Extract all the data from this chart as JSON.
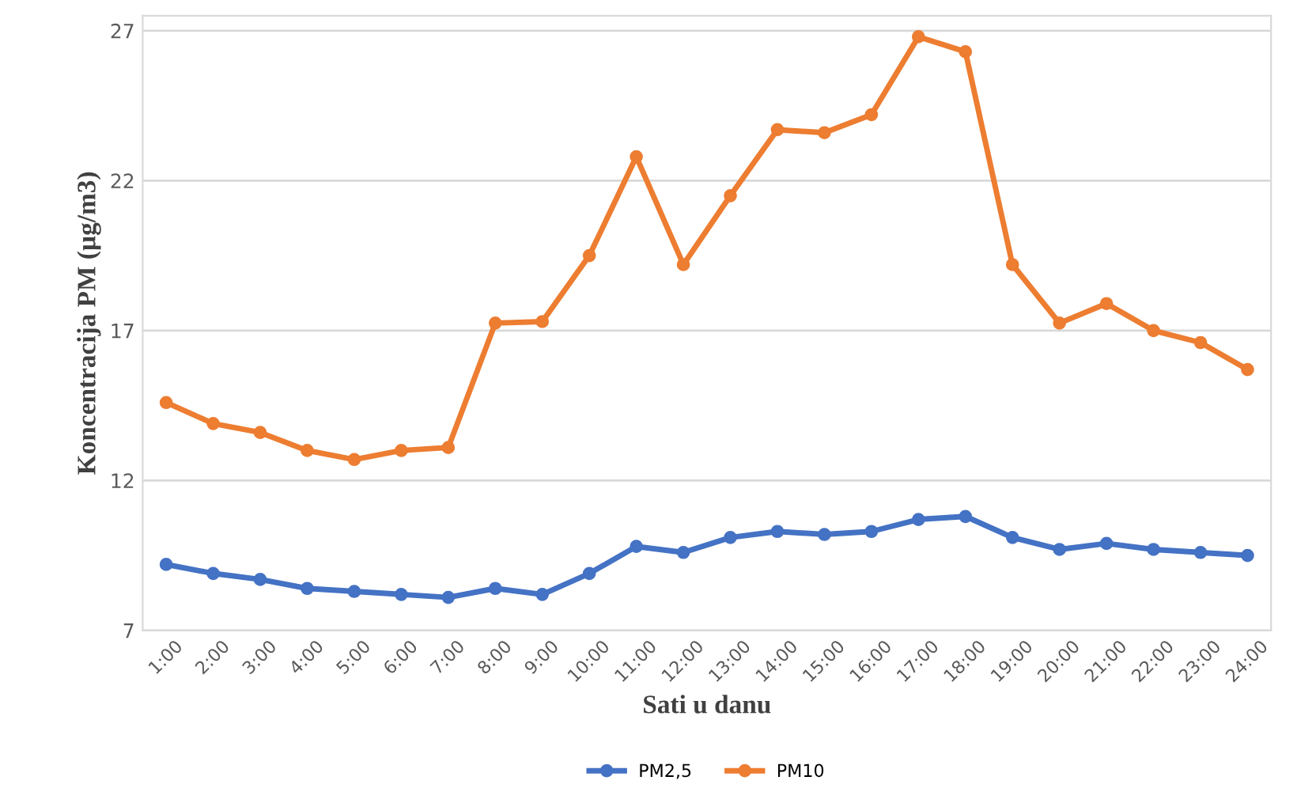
{
  "chart_data": {
    "type": "line",
    "xlabel": "Sati u danu",
    "ylabel": "Koncentracija PM (µg/m3)",
    "categories": [
      "1:00",
      "2:00",
      "3:00",
      "4:00",
      "5:00",
      "6:00",
      "7:00",
      "8:00",
      "9:00",
      "10:00",
      "11:00",
      "12:00",
      "13:00",
      "14:00",
      "15:00",
      "16:00",
      "17:00",
      "18:00",
      "19:00",
      "20:00",
      "21:00",
      "22:00",
      "23:00",
      "24:00"
    ],
    "series": [
      {
        "name": "PM2,5",
        "color": "#4472c4",
        "values": [
          9.2,
          8.9,
          8.7,
          8.4,
          8.3,
          8.2,
          8.1,
          8.4,
          8.2,
          8.9,
          9.8,
          9.6,
          10.1,
          10.3,
          10.2,
          10.3,
          10.7,
          10.8,
          10.1,
          9.7,
          9.9,
          9.7,
          9.6,
          9.5
        ]
      },
      {
        "name": "PM10",
        "color": "#ed7d31",
        "values": [
          14.6,
          13.9,
          13.6,
          13.0,
          12.7,
          13.0,
          13.1,
          17.25,
          17.3,
          19.5,
          22.8,
          19.2,
          21.5,
          23.7,
          23.6,
          24.2,
          26.8,
          26.3,
          19.2,
          17.25,
          17.9,
          17.0,
          16.6,
          15.7
        ]
      }
    ],
    "ylim": [
      7,
      27.5
    ],
    "yticks": [
      7,
      12,
      17,
      22,
      27
    ],
    "grid": "y",
    "legend": "bottom",
    "marker": "circle",
    "line_style": "solid"
  }
}
